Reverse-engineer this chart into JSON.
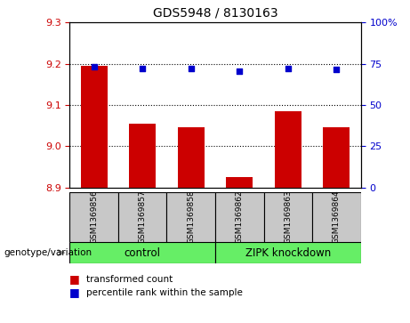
{
  "title": "GDS5948 / 8130163",
  "samples": [
    "GSM1369856",
    "GSM1369857",
    "GSM1369858",
    "GSM1369862",
    "GSM1369863",
    "GSM1369864"
  ],
  "bar_values": [
    9.195,
    9.055,
    9.045,
    8.925,
    9.085,
    9.045
  ],
  "scatter_values": [
    73,
    72,
    72,
    70.5,
    72,
    71.5
  ],
  "ylim_left": [
    8.9,
    9.3
  ],
  "ylim_right": [
    0,
    100
  ],
  "yticks_left": [
    8.9,
    9.0,
    9.1,
    9.2,
    9.3
  ],
  "yticks_right": [
    0,
    25,
    50,
    75,
    100
  ],
  "ytick_labels_right": [
    "0",
    "25",
    "50",
    "75",
    "100%"
  ],
  "bar_color": "#cc0000",
  "scatter_color": "#0000cc",
  "bar_bottom": 8.9,
  "grid_values": [
    9.0,
    9.1,
    9.2
  ],
  "group_info": [
    {
      "start": 0,
      "end": 2,
      "label": "control",
      "color": "#66ee66"
    },
    {
      "start": 3,
      "end": 5,
      "label": "ZIPK knockdown",
      "color": "#66ee66"
    }
  ],
  "genotype_label": "genotype/variation",
  "legend_bar_label": "transformed count",
  "legend_scatter_label": "percentile rank within the sample",
  "sample_box_color": "#c8c8c8",
  "plot_bg": "#ffffff",
  "label_color_left": "#cc0000",
  "label_color_right": "#0000cc"
}
